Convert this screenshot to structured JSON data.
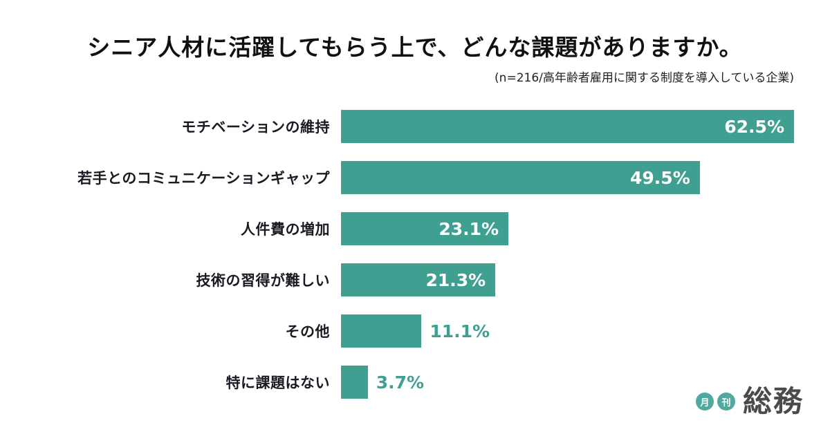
{
  "title": "シニア人材に活躍してもらう上で、どんな課題がありますか。",
  "subtitle": "(n=216/高年齢者雇用に関する制度を導入している企業)",
  "chart_data": {
    "type": "bar",
    "orientation": "horizontal",
    "title": "シニア人材に活躍してもらう上で、どんな課題がありますか。",
    "subtitle": "(n=216/高年齢者雇用に関する制度を導入している企業)",
    "categories": [
      "モチベーションの維持",
      "若手とのコミュニケーションギャップ",
      "人件費の増加",
      "技術の習得が難しい",
      "その他",
      "特に課題はない"
    ],
    "values": [
      62.5,
      49.5,
      23.1,
      21.3,
      11.1,
      3.7
    ],
    "value_labels": [
      "62.5%",
      "49.5%",
      "23.1%",
      "21.3%",
      "11.1%",
      "3.7%"
    ],
    "xlim": [
      0,
      62.5
    ],
    "grid": false,
    "legend": "none",
    "bar_color": "#3FA092",
    "inside_label_color": "#FFFFFF",
    "outside_label_color": "#3FA092",
    "inside_label_threshold": 15
  },
  "logo": {
    "badge1": "月",
    "badge2": "刊",
    "text": "総務",
    "badge_color": "#4FA99E",
    "text_color": "#4A4A4A"
  }
}
